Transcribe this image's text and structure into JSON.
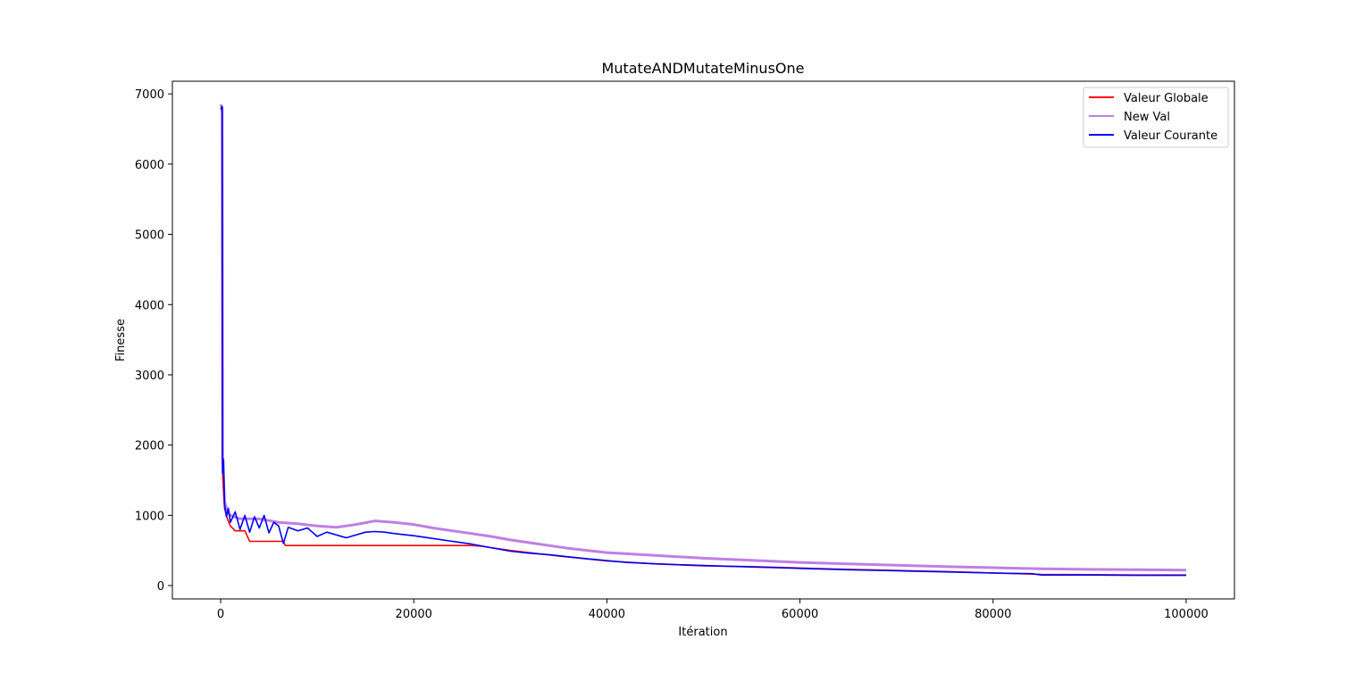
{
  "chart_data": {
    "type": "line",
    "title": "MutateANDMutateMinusOne",
    "xlabel": "Itération",
    "ylabel": "Finesse",
    "xlim": [
      -5000,
      105000
    ],
    "ylim": [
      -190,
      7180
    ],
    "xticks": [
      0,
      20000,
      40000,
      60000,
      80000,
      100000
    ],
    "yticks": [
      0,
      1000,
      2000,
      3000,
      4000,
      5000,
      6000,
      7000
    ],
    "grid": false,
    "legend_position": "top-right",
    "series": [
      {
        "name": "Valeur Globale",
        "color": "#ff0000",
        "points": [
          [
            0,
            6780
          ],
          [
            150,
            6780
          ],
          [
            200,
            1600
          ],
          [
            400,
            1100
          ],
          [
            700,
            950
          ],
          [
            1000,
            850
          ],
          [
            1500,
            780
          ],
          [
            2500,
            780
          ],
          [
            3000,
            630
          ],
          [
            6500,
            630
          ],
          [
            6700,
            570
          ],
          [
            26000,
            570
          ],
          [
            27000,
            560
          ],
          [
            30000,
            500
          ],
          [
            35000,
            420
          ],
          [
            40000,
            350
          ],
          [
            45000,
            310
          ],
          [
            50000,
            280
          ],
          [
            55000,
            270
          ],
          [
            60000,
            250
          ],
          [
            65000,
            230
          ],
          [
            70000,
            215
          ],
          [
            75000,
            200
          ],
          [
            80000,
            180
          ],
          [
            85000,
            160
          ],
          [
            90000,
            155
          ],
          [
            95000,
            150
          ],
          [
            100000,
            150
          ]
        ]
      },
      {
        "name": "New Val",
        "color": "#bf7fe3",
        "points": [
          [
            0,
            6850
          ],
          [
            150,
            6800
          ],
          [
            200,
            1800
          ],
          [
            400,
            1200
          ],
          [
            700,
            1050
          ],
          [
            1000,
            1000
          ],
          [
            2000,
            950
          ],
          [
            4000,
            950
          ],
          [
            6000,
            900
          ],
          [
            8000,
            880
          ],
          [
            10000,
            850
          ],
          [
            12000,
            830
          ],
          [
            14000,
            870
          ],
          [
            16000,
            920
          ],
          [
            18000,
            900
          ],
          [
            20000,
            870
          ],
          [
            22000,
            820
          ],
          [
            24000,
            780
          ],
          [
            26000,
            740
          ],
          [
            28000,
            700
          ],
          [
            30000,
            650
          ],
          [
            32000,
            610
          ],
          [
            34000,
            570
          ],
          [
            36000,
            530
          ],
          [
            38000,
            500
          ],
          [
            40000,
            470
          ],
          [
            45000,
            430
          ],
          [
            50000,
            390
          ],
          [
            55000,
            360
          ],
          [
            60000,
            330
          ],
          [
            65000,
            310
          ],
          [
            70000,
            290
          ],
          [
            75000,
            270
          ],
          [
            80000,
            255
          ],
          [
            85000,
            240
          ],
          [
            90000,
            230
          ],
          [
            95000,
            225
          ],
          [
            100000,
            220
          ]
        ]
      },
      {
        "name": "Valeur Courante",
        "color": "#0000ff",
        "points": [
          [
            0,
            6780
          ],
          [
            150,
            6820
          ],
          [
            200,
            1600
          ],
          [
            300,
            1800
          ],
          [
            400,
            1150
          ],
          [
            600,
            980
          ],
          [
            800,
            1100
          ],
          [
            1000,
            900
          ],
          [
            1500,
            1050
          ],
          [
            2000,
            800
          ],
          [
            2500,
            1000
          ],
          [
            3000,
            760
          ],
          [
            3500,
            980
          ],
          [
            4000,
            820
          ],
          [
            4500,
            1000
          ],
          [
            5000,
            750
          ],
          [
            5500,
            900
          ],
          [
            6000,
            850
          ],
          [
            6500,
            600
          ],
          [
            7000,
            830
          ],
          [
            8000,
            780
          ],
          [
            9000,
            820
          ],
          [
            10000,
            700
          ],
          [
            11000,
            760
          ],
          [
            12000,
            720
          ],
          [
            13000,
            680
          ],
          [
            14000,
            720
          ],
          [
            15000,
            760
          ],
          [
            16000,
            770
          ],
          [
            17000,
            760
          ],
          [
            18000,
            740
          ],
          [
            20000,
            710
          ],
          [
            22000,
            670
          ],
          [
            24000,
            630
          ],
          [
            26000,
            590
          ],
          [
            28000,
            540
          ],
          [
            30000,
            490
          ],
          [
            32000,
            460
          ],
          [
            34000,
            440
          ],
          [
            36000,
            410
          ],
          [
            38000,
            380
          ],
          [
            40000,
            355
          ],
          [
            42000,
            330
          ],
          [
            45000,
            310
          ],
          [
            50000,
            285
          ],
          [
            55000,
            265
          ],
          [
            60000,
            245
          ],
          [
            65000,
            225
          ],
          [
            70000,
            210
          ],
          [
            75000,
            195
          ],
          [
            80000,
            178
          ],
          [
            84000,
            170
          ],
          [
            85000,
            150
          ],
          [
            90000,
            150
          ],
          [
            95000,
            145
          ],
          [
            100000,
            145
          ]
        ]
      }
    ]
  }
}
